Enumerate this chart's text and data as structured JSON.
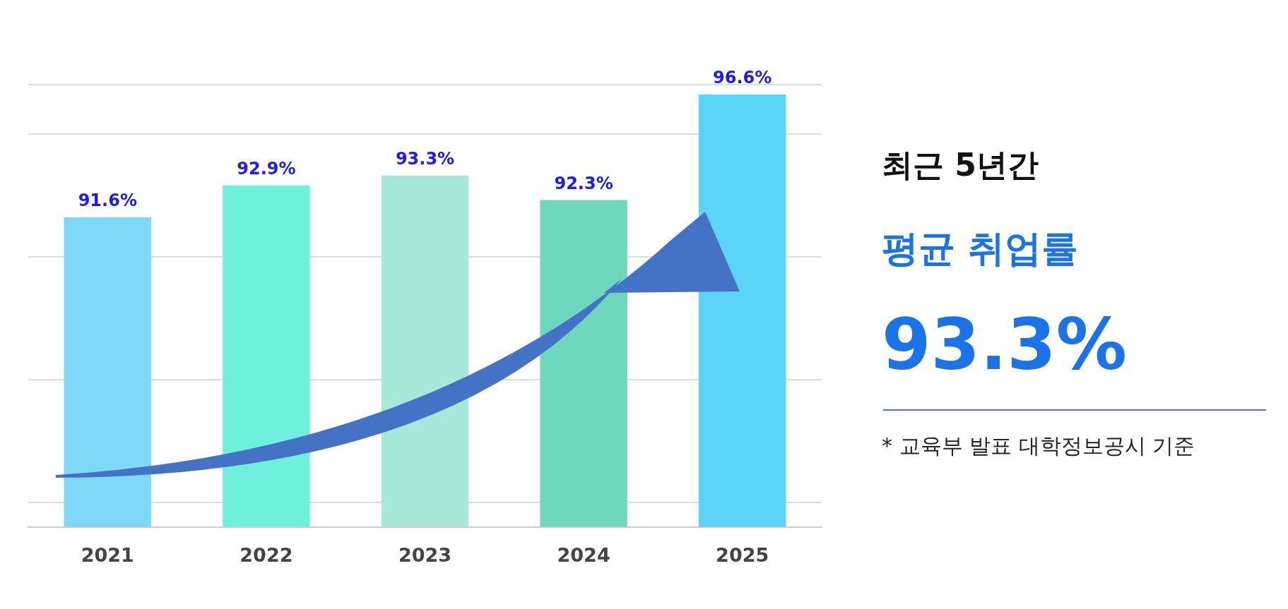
{
  "chart_data": {
    "type": "bar",
    "title": "최근 5년간",
    "subtitle": "평균 취업률",
    "annotations": [
      "93.3%",
      "* 교육부 발표 대학정보공시 기준"
    ],
    "categories": [
      "2021",
      "2022",
      "2023",
      "2024",
      "2025"
    ],
    "values": [
      91.6,
      92.9,
      93.3,
      92.3,
      96.6
    ],
    "colors": [
      "#7fd8f7",
      "#6ff0dd",
      "#a8e8d8",
      "#6fd8bc",
      "#5cd4f8"
    ],
    "value_labels": [
      "91.6%",
      "92.9%",
      "93.3%",
      "92.3%",
      "96.6%"
    ],
    "ylim": [
      79,
      97
    ],
    "grid": "y",
    "tick_labels": "x"
  }
}
